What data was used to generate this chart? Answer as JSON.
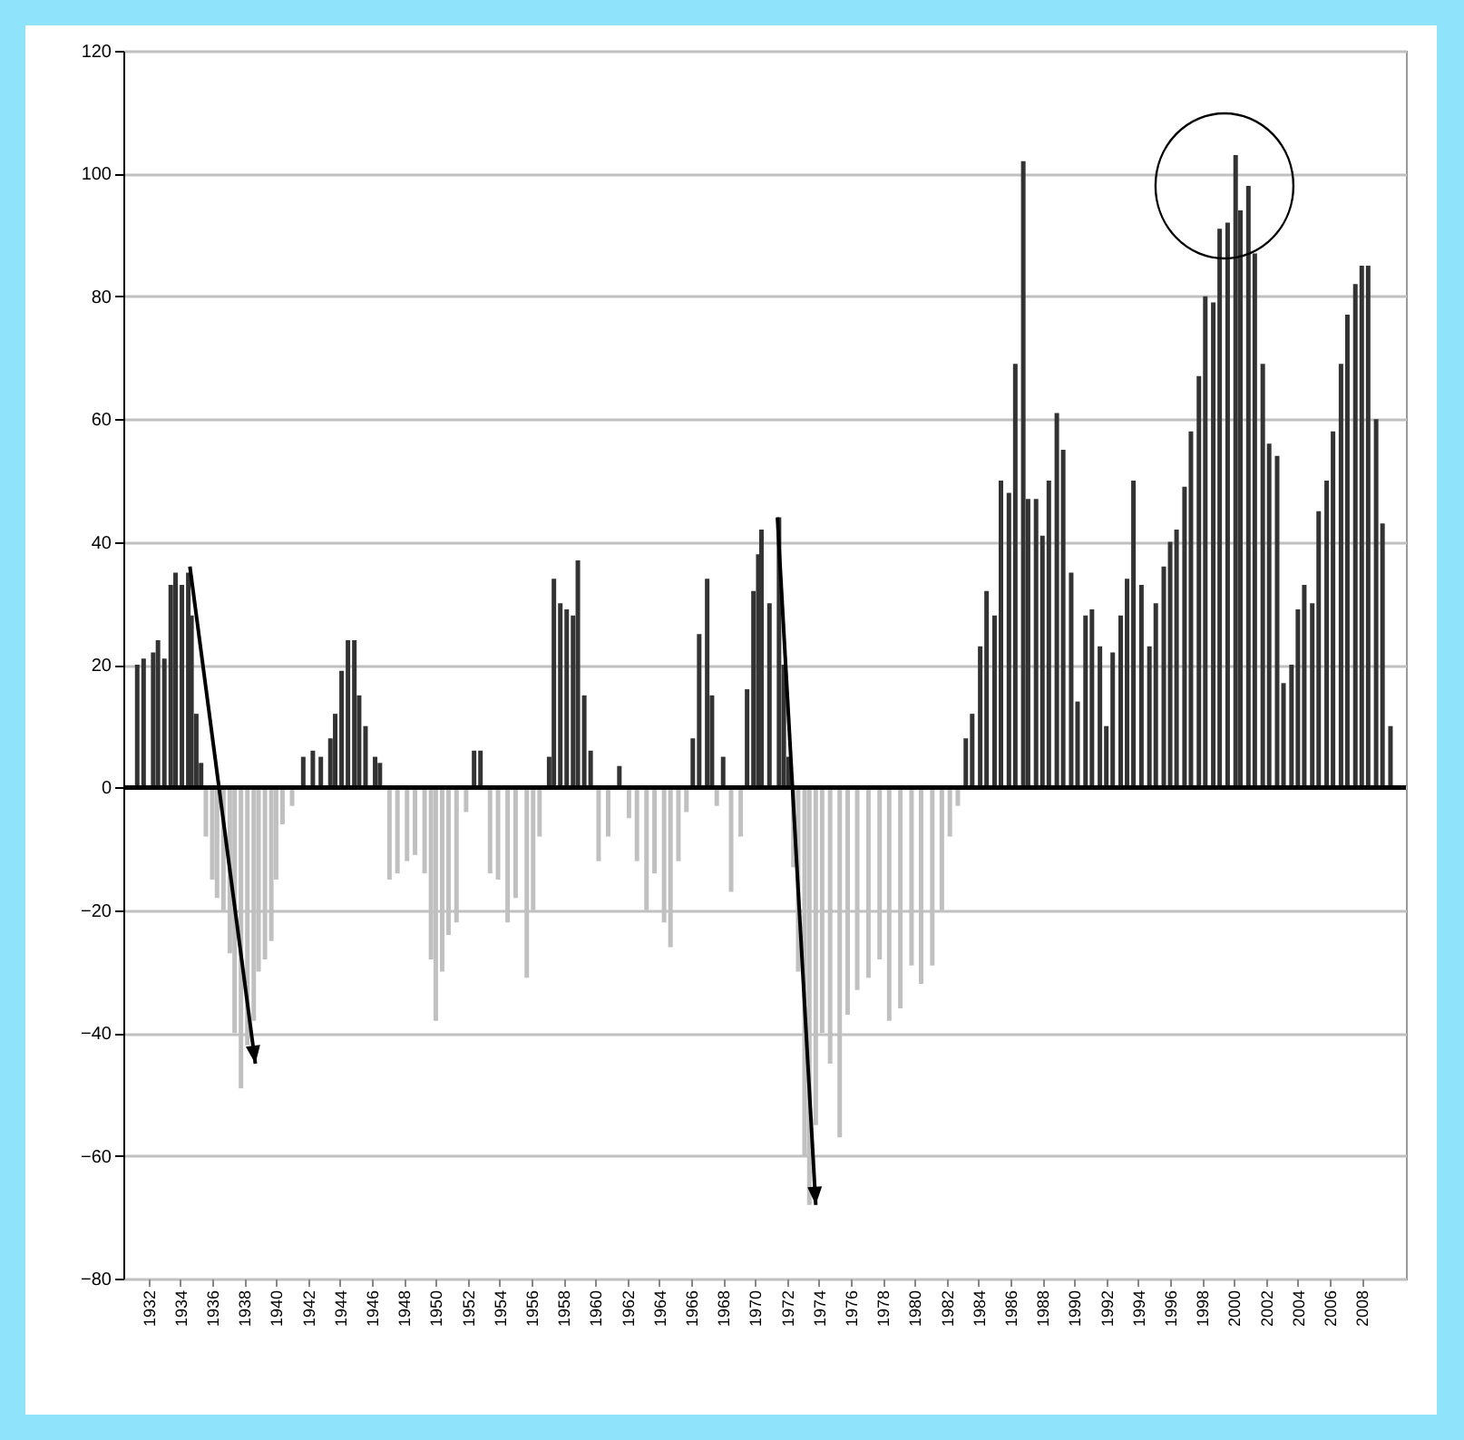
{
  "chart_data": {
    "type": "bar",
    "xlim": [
      1931,
      2010.2
    ],
    "xticks": [
      1932,
      1934,
      1936,
      1938,
      1940,
      1942,
      1944,
      1946,
      1948,
      1950,
      1952,
      1954,
      1956,
      1958,
      1960,
      1962,
      1964,
      1966,
      1968,
      1970,
      1972,
      1974,
      1976,
      1978,
      1980,
      1982,
      1984,
      1986,
      1988,
      1990,
      1992,
      1994,
      1996,
      1998,
      2000,
      2002,
      2004,
      2006,
      2008
    ],
    "ylim": [
      -80,
      120
    ],
    "yticks": [
      -80,
      -60,
      -40,
      -20,
      0,
      20,
      40,
      60,
      80,
      100,
      120
    ],
    "grid": "y",
    "ref_lines": [
      {
        "axis": "y",
        "value": 0,
        "color": "#000000"
      }
    ],
    "series": [
      {
        "color": "#333333",
        "x": [
          1931.3,
          1931.7,
          1932.3,
          1932.6,
          1933.0,
          1933.4,
          1933.7,
          1934.1,
          1934.5,
          1934.7,
          1935.0,
          1935.3,
          1941.7,
          1942.3,
          1942.8,
          1943.4,
          1943.7,
          1944.1,
          1944.5,
          1944.9,
          1945.2,
          1945.6,
          1946.2,
          1946.5,
          1952.4,
          1952.8,
          1957.1,
          1957.4,
          1957.8,
          1958.2,
          1958.6,
          1958.9,
          1959.3,
          1959.7,
          1961.5,
          1966.1,
          1966.5,
          1967.0,
          1967.3,
          1968.0,
          1969.5,
          1969.9,
          1970.2,
          1970.4,
          1970.9,
          1971.5,
          1971.8,
          1972.1,
          1983.2,
          1983.6,
          1984.1,
          1984.5,
          1985.0,
          1985.4,
          1985.9,
          1986.3,
          1986.8,
          1987.1,
          1987.6,
          1988.0,
          1988.4,
          1988.9,
          1989.3,
          1989.8,
          1990.2,
          1990.7,
          1991.1,
          1991.6,
          1992.0,
          1992.4,
          1992.9,
          1993.3,
          1993.7,
          1994.2,
          1994.7,
          1995.1,
          1995.6,
          1996.0,
          1996.4,
          1996.9,
          1997.3,
          1997.8,
          1998.2,
          1998.7,
          1999.1,
          1999.6,
          2000.1,
          2000.4,
          2000.9,
          2001.3,
          2001.8,
          2002.2,
          2002.7,
          2003.1,
          2003.6,
          2004.0,
          2004.4,
          2004.9,
          2005.3,
          2005.8,
          2006.2,
          2006.7,
          2007.1,
          2007.6,
          2008.0,
          2008.4,
          2008.9,
          2009.3,
          2009.8
        ],
        "values": [
          20,
          21,
          22,
          24,
          21,
          33,
          35,
          33,
          35,
          28,
          12,
          4,
          5,
          6,
          5,
          8,
          12,
          19,
          24,
          24,
          15,
          10,
          5,
          4,
          6,
          6,
          5,
          34,
          30,
          29,
          28,
          37,
          15,
          6,
          3.5,
          8,
          25,
          34,
          15,
          5,
          16,
          32,
          38,
          42,
          30,
          44,
          20,
          5,
          8,
          12,
          23,
          32,
          28,
          50,
          48,
          69,
          102,
          47,
          47,
          41,
          50,
          61,
          55,
          35,
          14,
          28,
          29,
          23,
          10,
          22,
          28,
          34,
          50,
          33,
          23,
          30,
          36,
          40,
          42,
          49,
          58,
          67,
          80,
          79,
          91,
          92,
          103,
          94,
          98,
          87,
          69,
          56,
          54,
          17,
          20,
          29,
          33,
          30,
          45,
          50,
          58,
          69,
          77,
          82,
          85,
          85,
          60,
          43,
          10
        ]
      },
      {
        "color": "#c0c0c0",
        "x": [
          1935.6,
          1936.0,
          1936.3,
          1936.7,
          1937.1,
          1937.4,
          1937.8,
          1938.2,
          1938.6,
          1938.9,
          1939.3,
          1939.7,
          1940.0,
          1940.4,
          1941.0,
          1947.1,
          1947.6,
          1948.2,
          1948.7,
          1949.3,
          1949.7,
          1950.0,
          1950.4,
          1950.8,
          1951.3,
          1951.9,
          1953.4,
          1953.9,
          1954.5,
          1955.0,
          1955.7,
          1956.1,
          1956.5,
          1960.2,
          1960.8,
          1962.1,
          1962.6,
          1963.2,
          1963.7,
          1964.3,
          1964.7,
          1965.2,
          1965.7,
          1967.6,
          1968.5,
          1969.1,
          1972.4,
          1972.7,
          1973.1,
          1973.4,
          1973.8,
          1974.2,
          1974.7,
          1975.3,
          1975.8,
          1976.4,
          1977.1,
          1977.8,
          1978.4,
          1979.1,
          1979.8,
          1980.4,
          1981.1,
          1981.7,
          1982.2,
          1982.7
        ],
        "values": [
          -8,
          -15,
          -18,
          -20,
          -27,
          -40,
          -49,
          -42,
          -38,
          -30,
          -28,
          -25,
          -15,
          -6,
          -3,
          -15,
          -14,
          -12,
          -11,
          -14,
          -28,
          -38,
          -30,
          -24,
          -22,
          -4,
          -14,
          -15,
          -22,
          -18,
          -31,
          -20,
          -8,
          -12,
          -8,
          -5,
          -12,
          -20,
          -14,
          -22,
          -26,
          -12,
          -4,
          -3,
          -17,
          -8,
          -13,
          -30,
          -60,
          -68,
          -55,
          -40,
          -45,
          -57,
          -37,
          -33,
          -31,
          -28,
          -38,
          -36,
          -29,
          -32,
          -29,
          -20,
          -8,
          -3
        ]
      }
    ]
  }
}
